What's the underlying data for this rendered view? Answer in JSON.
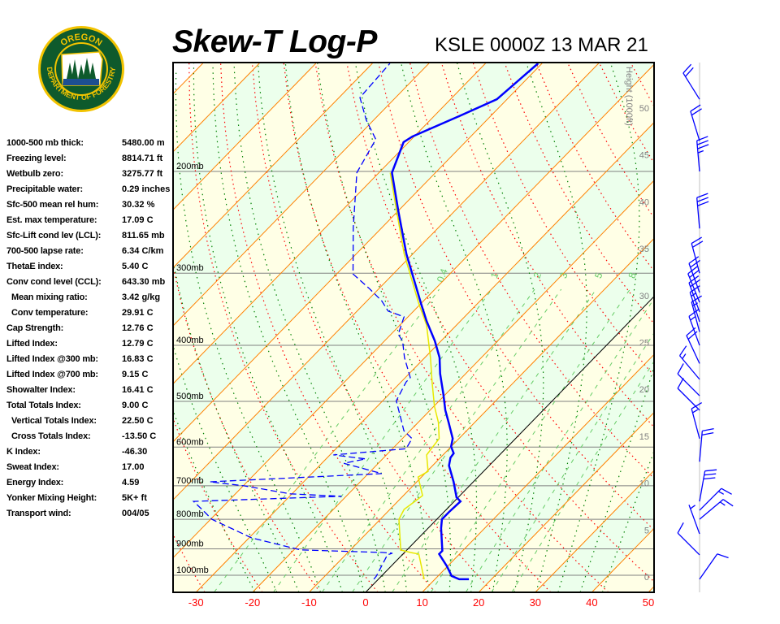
{
  "header": {
    "title": "Skew-T Log-P",
    "subtitle": "KSLE 0000Z 13 MAR 21"
  },
  "logo": {
    "top_text": "OREGON",
    "bottom_text": "DEPARTMENT OF FORESTRY",
    "colors": {
      "green": "#0e5a2c",
      "gold": "#f2c300",
      "blue": "#1d4f91"
    }
  },
  "stats": [
    {
      "label": "1000-500 mb thick:",
      "value": "5480.00 m",
      "indent": false
    },
    {
      "label": "Freezing level:",
      "value": "8814.71 ft",
      "indent": false
    },
    {
      "label": "Wetbulb zero:",
      "value": "3275.77 ft",
      "indent": false
    },
    {
      "label": "Precipitable water:",
      "value": "0.29 inches",
      "indent": false
    },
    {
      "label": "Sfc-500 mean rel hum:",
      "value": "30.32 %",
      "indent": false
    },
    {
      "label": "Est. max temperature:",
      "value": "17.09 C",
      "indent": false
    },
    {
      "label": "Sfc-Lift cond lev (LCL):",
      "value": "811.65 mb",
      "indent": false
    },
    {
      "label": "700-500 lapse rate:",
      "value": "6.34 C/km",
      "indent": false
    },
    {
      "label": "ThetaE index:",
      "value": "5.40 C",
      "indent": false
    },
    {
      "label": "Conv cond level (CCL):",
      "value": "643.30 mb",
      "indent": false
    },
    {
      "label": "Mean mixing ratio:",
      "value": "3.42 g/kg",
      "indent": true
    },
    {
      "label": "Conv temperature:",
      "value": "29.91 C",
      "indent": true
    },
    {
      "label": "Cap Strength:",
      "value": "12.76 C",
      "indent": false
    },
    {
      "label": "Lifted Index:",
      "value": "12.79 C",
      "indent": false
    },
    {
      "label": "Lifted Index @300 mb:",
      "value": "16.83 C",
      "indent": false
    },
    {
      "label": "Lifted Index @700 mb:",
      "value": "9.15 C",
      "indent": false
    },
    {
      "label": "Showalter Index:",
      "value": "16.41 C",
      "indent": false
    },
    {
      "label": "Total Totals Index:",
      "value": "9.00 C",
      "indent": false
    },
    {
      "label": "Vertical Totals Index:",
      "value": "22.50 C",
      "indent": true
    },
    {
      "label": "Cross Totals Index:",
      "value": "-13.50 C",
      "indent": true
    },
    {
      "label": "K Index:",
      "value": "-46.30",
      "indent": false
    },
    {
      "label": "Sweat Index:",
      "value": "17.00",
      "indent": false
    },
    {
      "label": "Energy Index:",
      "value": "4.59",
      "indent": false
    },
    {
      "label": "Yonker Mixing Height:",
      "value": "5K+ ft",
      "indent": false
    },
    {
      "label": "Transport wind:",
      "value": "004/05",
      "indent": false
    }
  ],
  "chart_data": {
    "type": "skew-t",
    "title": "Skew-T Log-P",
    "subtitle": "KSLE 0000Z 13 MAR 21",
    "xlim": [
      -34,
      51
    ],
    "ylim_mb": [
      1070,
      130
    ],
    "y_scale": "log",
    "x_ticks": [
      "-30",
      "-20",
      "-10",
      "0",
      "10",
      "20",
      "30",
      "40",
      "50"
    ],
    "pressure_levels": [
      {
        "p": 200,
        "label": "200mb"
      },
      {
        "p": 300,
        "label": "300mb"
      },
      {
        "p": 400,
        "label": "400mb"
      },
      {
        "p": 500,
        "label": "500mb"
      },
      {
        "p": 600,
        "label": "600mb"
      },
      {
        "p": 700,
        "label": "700mb"
      },
      {
        "p": 800,
        "label": "800mb"
      },
      {
        "p": 900,
        "label": "900mb"
      },
      {
        "p": 1000,
        "label": "1000mb"
      }
    ],
    "height_axis": {
      "label": "Height (1000ft)",
      "ticks": [
        "0",
        "5",
        "10",
        "15",
        "20",
        "25",
        "30",
        "35",
        "40",
        "45",
        "50"
      ]
    },
    "mixing_ratio_labels": [
      "0.4",
      "1",
      "2",
      "3",
      "5",
      "8"
    ],
    "mixing_ratio_lines": [
      0.4,
      1,
      2,
      3,
      5,
      8,
      12,
      16,
      20
    ],
    "colors": {
      "temperature": "#0000ff",
      "dewpoint": "#0000ff",
      "wetbulb": "#e8e800",
      "isotherm": "#ff8000",
      "zero_isotherm": "#000000",
      "dry_adiabat": "#ff0000",
      "moist_adiabat": "#008000",
      "mixing_ratio": "#66cc66",
      "isobar": "#808080",
      "band_a": "#ffffe6",
      "band_b": "#ecffec",
      "tick_label": "#ff0000",
      "height_label": "#808080",
      "wind": "#0000ff"
    },
    "temperature": [
      [
        1016,
        16.0
      ],
      [
        1016,
        14.3
      ],
      [
        1003,
        12.4
      ],
      [
        965,
        9.9
      ],
      [
        919,
        6.4
      ],
      [
        907,
        6.4
      ],
      [
        829,
        2.3
      ],
      [
        800,
        0.9
      ],
      [
        777,
        0.9
      ],
      [
        745,
        1.1
      ],
      [
        733,
        -0.3
      ],
      [
        689,
        -3.5
      ],
      [
        646,
        -7.1
      ],
      [
        626,
        -8.2
      ],
      [
        615,
        -8.4
      ],
      [
        599,
        -10.0
      ],
      [
        580,
        -11.1
      ],
      [
        544,
        -14.6
      ],
      [
        518,
        -17.3
      ],
      [
        486,
        -20.4
      ],
      [
        448,
        -24.5
      ],
      [
        420,
        -27.4
      ],
      [
        393,
        -31.1
      ],
      [
        363,
        -36.0
      ],
      [
        338,
        -40.1
      ],
      [
        278,
        -51.1
      ],
      [
        234,
        -60.0
      ],
      [
        201,
        -67.7
      ],
      [
        178,
        -70.9
      ],
      [
        174,
        -70.3
      ],
      [
        160,
        -65.4
      ],
      [
        150,
        -61.8
      ],
      [
        130,
        -60.7
      ]
    ],
    "dewpoint": [
      [
        1016,
        -0.8
      ],
      [
        1003,
        -0.9
      ],
      [
        922,
        -2.6
      ],
      [
        916,
        -2.0
      ],
      [
        913,
        -4.0
      ],
      [
        904,
        -18.8
      ],
      [
        862,
        -29.5
      ],
      [
        800,
        -39.8
      ],
      [
        772,
        -42.9
      ],
      [
        745,
        -46.1
      ],
      [
        730,
        -20.8
      ],
      [
        723,
        -30.3
      ],
      [
        700,
        -39.9
      ],
      [
        689,
        -46.6
      ],
      [
        667,
        -17.6
      ],
      [
        640,
        -26.1
      ],
      [
        629,
        -23.0
      ],
      [
        619,
        -29.4
      ],
      [
        604,
        -17.6
      ],
      [
        580,
        -18.3
      ],
      [
        562,
        -21.1
      ],
      [
        527,
        -24.6
      ],
      [
        499,
        -27.6
      ],
      [
        463,
        -29.1
      ],
      [
        455,
        -29.1
      ],
      [
        420,
        -33.6
      ],
      [
        393,
        -36.8
      ],
      [
        383,
        -38.7
      ],
      [
        357,
        -40.7
      ],
      [
        349,
        -44.5
      ],
      [
        335,
        -47.4
      ],
      [
        319,
        -51.7
      ],
      [
        301,
        -57.1
      ],
      [
        250,
        -65.1
      ],
      [
        201,
        -73.9
      ],
      [
        176,
        -76.3
      ],
      [
        163,
        -81.3
      ],
      [
        149,
        -86.3
      ],
      [
        130,
        -86.9
      ]
    ],
    "wetbulb": [
      [
        1016,
        8.1
      ],
      [
        919,
        2.8
      ],
      [
        913,
        1.0
      ],
      [
        904,
        -1.1
      ],
      [
        800,
        -6.7
      ],
      [
        769,
        -7.5
      ],
      [
        728,
        -6.6
      ],
      [
        676,
        -10.6
      ],
      [
        661,
        -9.8
      ],
      [
        619,
        -12.9
      ],
      [
        580,
        -13.5
      ],
      [
        544,
        -16.4
      ],
      [
        510,
        -19.9
      ],
      [
        463,
        -24.5
      ],
      [
        420,
        -29.0
      ],
      [
        369,
        -35.3
      ],
      [
        338,
        -40.5
      ],
      [
        278,
        -51.5
      ],
      [
        234,
        -60.3
      ],
      [
        201,
        -68.0
      ]
    ],
    "winds": [
      {
        "p": 150,
        "dir": 328,
        "spd": 20
      },
      {
        "p": 177,
        "dir": 343,
        "spd": 20
      },
      {
        "p": 200,
        "dir": 355,
        "spd": 35
      },
      {
        "p": 251,
        "dir": 355,
        "spd": 30
      },
      {
        "p": 300,
        "dir": 345,
        "spd": 20
      },
      {
        "p": 324,
        "dir": 340,
        "spd": 20
      },
      {
        "p": 337,
        "dir": 338,
        "spd": 20
      },
      {
        "p": 350,
        "dir": 340,
        "spd": 20
      },
      {
        "p": 364,
        "dir": 342,
        "spd": 15
      },
      {
        "p": 379,
        "dir": 345,
        "spd": 15
      },
      {
        "p": 400,
        "dir": 340,
        "spd": 15
      },
      {
        "p": 430,
        "dir": 335,
        "spd": 20
      },
      {
        "p": 458,
        "dir": 320,
        "spd": 15
      },
      {
        "p": 489,
        "dir": 315,
        "spd": 10
      },
      {
        "p": 518,
        "dir": 315,
        "spd": 10
      },
      {
        "p": 580,
        "dir": 345,
        "spd": 15
      },
      {
        "p": 636,
        "dir": 5,
        "spd": 20
      },
      {
        "p": 745,
        "dir": 10,
        "spd": 30
      },
      {
        "p": 772,
        "dir": 45,
        "spd": 15
      },
      {
        "p": 800,
        "dir": 50,
        "spd": 15
      },
      {
        "p": 848,
        "dir": 340,
        "spd": 5
      },
      {
        "p": 922,
        "dir": 315,
        "spd": 10
      },
      {
        "p": 1016,
        "dir": 35,
        "spd": 10
      }
    ]
  }
}
